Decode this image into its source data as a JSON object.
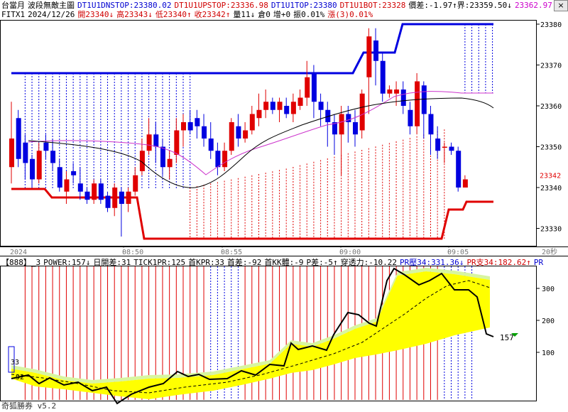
{
  "upper": {
    "row1": [
      {
        "t": "台當月",
        "c": "#000000"
      },
      {
        "t": "波段無敵主圖",
        "c": "#000000"
      },
      {
        "t": "DT1U1DNSTOP:23380.02",
        "c": "#0000d0"
      },
      {
        "t": "DT1U1UPSTOP:23336.98",
        "c": "#d00000"
      },
      {
        "t": "DT1U1TOP:23380",
        "c": "#0000d0"
      },
      {
        "t": "DT1U1BOT:23328",
        "c": "#d00000"
      },
      {
        "t": "價差:-1.97↑界:23359.50↓",
        "c": "#000000"
      },
      {
        "t": "23362.97",
        "c": "#cc00cc"
      }
    ],
    "row2": [
      {
        "t": "FITX1",
        "c": "#000000"
      },
      {
        "t": "2024/12/26",
        "c": "#000000"
      },
      {
        "t": "開23340↓",
        "c": "#d00000"
      },
      {
        "t": "高23343↓",
        "c": "#d00000"
      },
      {
        "t": "低23340↑",
        "c": "#d00000"
      },
      {
        "t": "收23342↑",
        "c": "#d00000"
      },
      {
        "t": "量11↓",
        "c": "#000000"
      },
      {
        "t": "倉0",
        "c": "#000000"
      },
      {
        "t": "增+0",
        "c": "#000000"
      },
      {
        "t": "振0.01%",
        "c": "#000000"
      },
      {
        "t": "漲(3)0.01%",
        "c": "#d00000"
      }
    ],
    "price_axis": [
      "23380",
      "23370",
      "23360",
      "23350",
      "23340",
      "23330"
    ],
    "current_price": "23342",
    "time_axis": [
      "2024",
      "08:50",
      "08:55",
      "09:00",
      "09:05"
    ],
    "interval": "20秒"
  },
  "lower": {
    "indicator_row": [
      {
        "t": "【888】_3",
        "c": "#000000"
      },
      {
        "t": "POWER:157↓",
        "c": "#000000"
      },
      {
        "t": "日開差:31",
        "c": "#000000"
      },
      {
        "t": "TICK1PR:125",
        "c": "#000000"
      },
      {
        "t": "首KPR:33",
        "c": "#000000"
      },
      {
        "t": "首差:-92",
        "c": "#000000"
      },
      {
        "t": "首KK體:-9",
        "c": "#000000"
      },
      {
        "t": "P差:-5↑",
        "c": "#000000"
      },
      {
        "t": "穿透力:-10.22",
        "c": "#000000"
      },
      {
        "t": "PR壓34:331.36↓",
        "c": "#0000d0"
      },
      {
        "t": "PR支34:182.62↑",
        "c": "#d00000"
      },
      {
        "t": "PR",
        "c": "#0000d0"
      }
    ],
    "axis": [
      "300",
      "200",
      "100"
    ],
    "labels": {
      "power_value": "157",
      "left_a": "33",
      "left_b": "92"
    }
  },
  "footer": {
    "brand": "奇狐勝券 v5.2"
  },
  "close_label": "×",
  "colors": {
    "up": "#e00000",
    "down": "#0000e0",
    "support": "#e00000",
    "resist": "#0000e0",
    "yellow": "#ffff00",
    "green": "#d8f5a0",
    "ma": "#000000",
    "magenta": "#cc33cc"
  }
}
